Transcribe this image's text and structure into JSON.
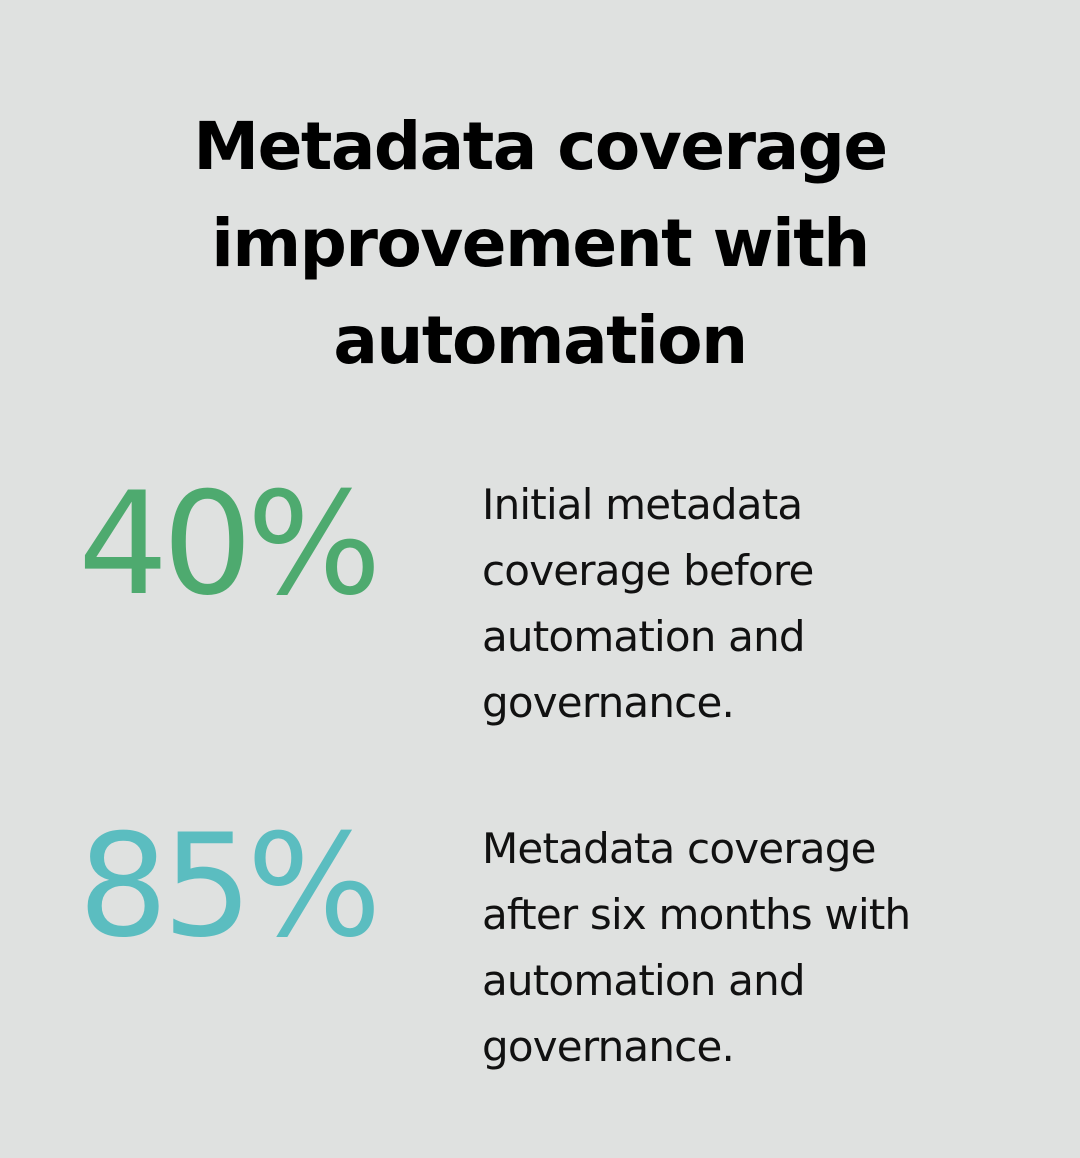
{
  "title": {
    "lines": [
      "Metadata coverage",
      "improvement with",
      "automation"
    ]
  },
  "stats": [
    {
      "value": "40%",
      "color": "#4eaa6f",
      "description_lines": [
        "Initial metadata",
        "coverage before",
        "automation and",
        "governance."
      ]
    },
    {
      "value": "85%",
      "color": "#5bbdc0",
      "description_lines": [
        "Metadata coverage",
        "after six months with",
        "automation and",
        "governance."
      ]
    }
  ],
  "colors": {
    "background": "#dfe1e0",
    "title_text": "#000000",
    "body_text": "#111111"
  }
}
